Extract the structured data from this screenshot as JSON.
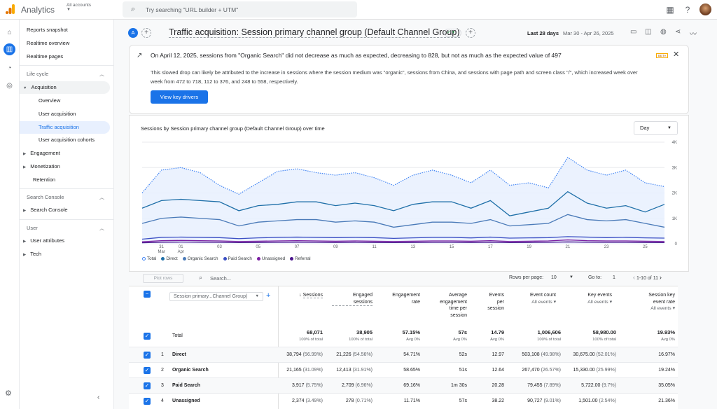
{
  "topbar": {
    "app_name": "Analytics",
    "accounts_label": "All accounts",
    "search_placeholder": "Try searching \"URL builder + UTM\"",
    "icons": [
      "apps-icon",
      "help-icon",
      "avatar"
    ]
  },
  "nav": {
    "items": {
      "reports_snapshot": "Reports snapshot",
      "realtime_overview": "Realtime overview",
      "realtime_pages": "Realtime pages",
      "lifecycle": "Life cycle",
      "acquisition": "Acquisition",
      "overview": "Overview",
      "user_acquisition": "User acquisition",
      "traffic_acquisition": "Traffic acquisition",
      "user_acquisition_cohorts": "User acquisition cohorts",
      "engagement": "Engagement",
      "monetization": "Monetization",
      "retention": "Retention",
      "search_console_section": "Search Console",
      "search_console": "Search Console",
      "user_section": "User",
      "user_attributes": "User attributes",
      "tech": "Tech"
    }
  },
  "header": {
    "badge": "A",
    "title": "Traffic acquisition: Session primary channel group (Default Channel Group)",
    "date_label": "Last 28 days",
    "date_range": "Mar 30 - Apr 26, 2025"
  },
  "insight": {
    "title": "On April 12, 2025, sessions from \"Organic Search\" did not decrease as much as expected, decreasing to 828, but not as much as the expected value of 497",
    "body": "This slowed drop can likely be attributed to the increase in sessions where the session medium was \"organic\", sessions from China, and sessions with page path and screen class \"/\", which increased week over week from 472 to 718, 112 to 376, and 248 to 558, respectively.",
    "beta": "BETA",
    "button": "View key drivers"
  },
  "chart": {
    "granularity": "Day",
    "accent_fill": "#e8f0fe"
  },
  "chart_data": {
    "type": "line",
    "title": "Sessions by Session primary channel group (Default Channel Group) over time",
    "x_tick_labels": [
      {
        "day": "31",
        "month": "Mar"
      },
      {
        "day": "01",
        "month": "Apr"
      },
      {
        "day": "03",
        "month": ""
      },
      {
        "day": "05",
        "month": ""
      },
      {
        "day": "07",
        "month": ""
      },
      {
        "day": "09",
        "month": ""
      },
      {
        "day": "11",
        "month": ""
      },
      {
        "day": "13",
        "month": ""
      },
      {
        "day": "15",
        "month": ""
      },
      {
        "day": "17",
        "month": ""
      },
      {
        "day": "19",
        "month": ""
      },
      {
        "day": "21",
        "month": ""
      },
      {
        "day": "23",
        "month": ""
      },
      {
        "day": "25",
        "month": ""
      }
    ],
    "x_tick_day_index": [
      1,
      2,
      4,
      6,
      8,
      10,
      12,
      14,
      16,
      18,
      20,
      22,
      24,
      26
    ],
    "y_ticks": [
      "0",
      "1K",
      "2K",
      "3K",
      "4K"
    ],
    "ylim": [
      0,
      4000
    ],
    "series": [
      {
        "name": "Total",
        "color": "#4285f4",
        "dashed": true,
        "values": [
          2000,
          2900,
          3000,
          2800,
          2300,
          1950,
          2400,
          2850,
          2950,
          2800,
          2700,
          2800,
          2600,
          2300,
          2700,
          2900,
          2700,
          2400,
          2900,
          2300,
          2400,
          2200,
          3400,
          2900,
          2700,
          2900,
          2400,
          2250
        ]
      },
      {
        "name": "Direct",
        "color": "#1e6fa8",
        "values": [
          1400,
          1700,
          1750,
          1700,
          1650,
          1300,
          1500,
          1550,
          1650,
          1650,
          1500,
          1600,
          1500,
          1300,
          1550,
          1650,
          1650,
          1400,
          1700,
          1100,
          1250,
          1400,
          2050,
          1600,
          1400,
          1500,
          1250,
          1550
        ]
      },
      {
        "name": "Organic Search",
        "color": "#4a7ab8",
        "values": [
          800,
          1000,
          1050,
          1000,
          950,
          700,
          850,
          900,
          950,
          950,
          850,
          900,
          850,
          650,
          750,
          850,
          850,
          800,
          950,
          700,
          750,
          800,
          1150,
          950,
          900,
          950,
          800,
          650
        ]
      },
      {
        "name": "Paid Search",
        "color": "#3b4fc4",
        "values": [
          180,
          250,
          260,
          250,
          240,
          200,
          230,
          250,
          260,
          250,
          240,
          250,
          240,
          210,
          230,
          250,
          250,
          230,
          260,
          220,
          230,
          240,
          280,
          260,
          240,
          250,
          230,
          220
        ]
      },
      {
        "name": "Unassigned",
        "color": "#7b1fa2",
        "values": [
          80,
          120,
          130,
          120,
          110,
          90,
          100,
          110,
          120,
          110,
          100,
          110,
          100,
          90,
          100,
          110,
          110,
          100,
          120,
          90,
          100,
          110,
          150,
          120,
          110,
          110,
          100,
          90
        ]
      },
      {
        "name": "Referral",
        "color": "#4a148c",
        "values": [
          40,
          60,
          65,
          60,
          55,
          45,
          50,
          55,
          60,
          55,
          50,
          55,
          50,
          45,
          50,
          55,
          55,
          50,
          60,
          45,
          50,
          55,
          70,
          60,
          55,
          55,
          50,
          45
        ]
      }
    ],
    "grid": true,
    "legend_position": "bottom-left"
  },
  "table": {
    "plot_rows": "Plot rows",
    "search_placeholder": "Search...",
    "rows_per_page_label": "Rows per page:",
    "rows_per_page": "10",
    "goto_label": "Go to:",
    "goto_value": "1",
    "page_range": "1-10 of 11",
    "dimension": "Session primary...Channel Group)",
    "columns": {
      "sessions": "Sessions",
      "engaged_1": "Engaged",
      "engaged_2": "sessions",
      "engrate_1": "Engagement",
      "engrate_2": "rate",
      "avg_1": "Average",
      "avg_2": "engagement",
      "avg_3": "time per",
      "avg_4": "session",
      "events_1": "Events",
      "events_2": "per",
      "events_3": "session",
      "event_count": "Event count",
      "event_count_sub": "All events",
      "key_events": "Key events",
      "key_events_sub": "All events",
      "skr_1": "Session key",
      "skr_2": "event rate",
      "skr_sub": "All events"
    },
    "total": {
      "label": "Total",
      "sessions": "68,071",
      "sessions_sub": "100% of total",
      "engaged": "38,905",
      "engaged_sub": "100% of total",
      "rate": "57.15%",
      "rate_sub": "Avg 0%",
      "avg": "57s",
      "avg_sub": "Avg 0%",
      "eps": "14.79",
      "eps_sub": "Avg 0%",
      "events": "1,006,606",
      "events_sub": "100% of total",
      "key": "58,980.00",
      "key_sub": "100% of total",
      "skr": "19.93%",
      "skr_sub": "Avg 0%"
    },
    "rows": [
      {
        "idx": "1",
        "name": "Direct",
        "sessions": "38,794",
        "sessions_pct": "(56.99%)",
        "engaged": "21,226",
        "engaged_pct": "(54.56%)",
        "rate": "54.71%",
        "avg": "52s",
        "eps": "12.97",
        "events": "503,108",
        "events_pct": "(49.98%)",
        "key": "30,675.00",
        "key_pct": "(52.01%)",
        "skr": "16.97%"
      },
      {
        "idx": "2",
        "name": "Organic Search",
        "sessions": "21,165",
        "sessions_pct": "(31.09%)",
        "engaged": "12,413",
        "engaged_pct": "(31.91%)",
        "rate": "58.65%",
        "avg": "51s",
        "eps": "12.64",
        "events": "267,470",
        "events_pct": "(26.57%)",
        "key": "15,330.00",
        "key_pct": "(25.99%)",
        "skr": "19.24%"
      },
      {
        "idx": "3",
        "name": "Paid Search",
        "sessions": "3,917",
        "sessions_pct": "(5.75%)",
        "engaged": "2,709",
        "engaged_pct": "(6.96%)",
        "rate": "69.16%",
        "avg": "1m 30s",
        "eps": "20.28",
        "events": "79,455",
        "events_pct": "(7.89%)",
        "key": "5,722.00",
        "key_pct": "(9.7%)",
        "skr": "35.05%"
      },
      {
        "idx": "4",
        "name": "Unassigned",
        "sessions": "2,374",
        "sessions_pct": "(3.49%)",
        "engaged": "278",
        "engaged_pct": "(0.71%)",
        "rate": "11.71%",
        "avg": "57s",
        "eps": "38.22",
        "events": "90,727",
        "events_pct": "(9.01%)",
        "key": "1,501.00",
        "key_pct": "(2.54%)",
        "skr": "21.36%"
      }
    ]
  }
}
